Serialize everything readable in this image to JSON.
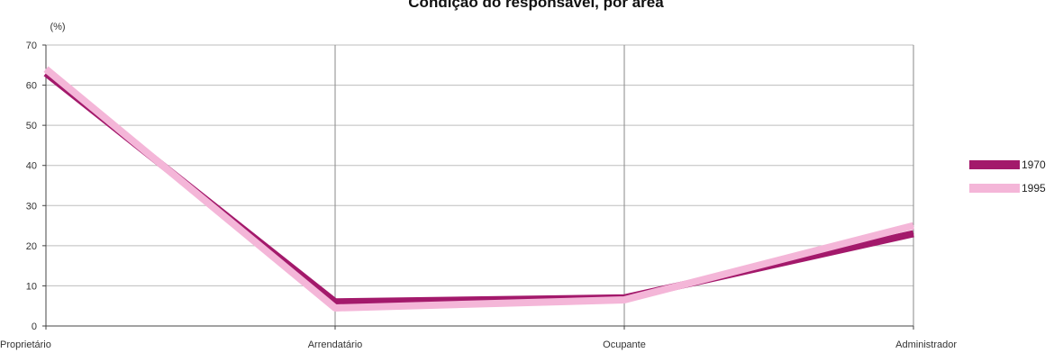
{
  "chart_data": {
    "type": "line",
    "title": "Condição do responsável, por área",
    "ylabel": "(%)",
    "xlabel": "",
    "categories": [
      "Proprietário",
      "Arrendatário",
      "Ocupante",
      "Administrador"
    ],
    "ylim": [
      0,
      70
    ],
    "yticks": [
      0,
      10,
      20,
      30,
      40,
      50,
      60,
      70
    ],
    "grid": true,
    "legend_position": "right",
    "series": [
      {
        "name": "1970",
        "values": [
          63,
          6,
          7,
          23
        ],
        "color": "#a3196b"
      },
      {
        "name": "1995",
        "values": [
          64,
          4.5,
          6.5,
          25
        ],
        "color": "#f4b6d8"
      }
    ]
  }
}
